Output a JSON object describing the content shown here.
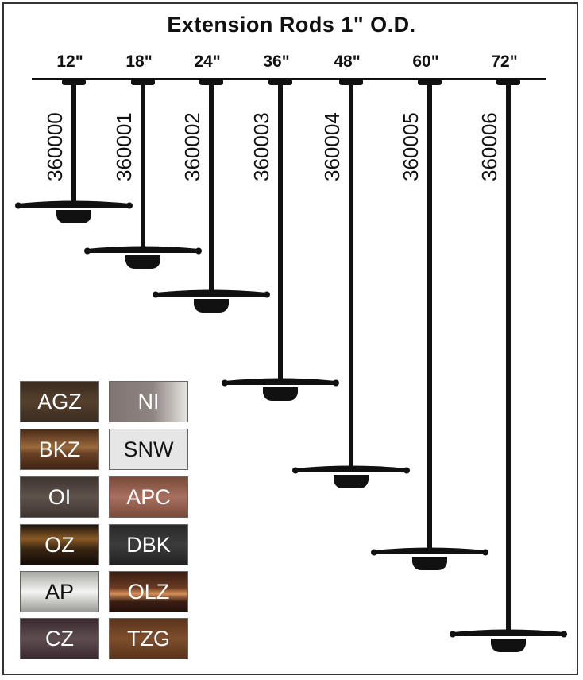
{
  "title": "Extension Rods 1\" O.D.",
  "rods": [
    {
      "length": "12\"",
      "part": "360000"
    },
    {
      "length": "18\"",
      "part": "360001"
    },
    {
      "length": "24\"",
      "part": "360002"
    },
    {
      "length": "36\"",
      "part": "360003"
    },
    {
      "length": "48\"",
      "part": "360004"
    },
    {
      "length": "60\"",
      "part": "360005"
    },
    {
      "length": "72\"",
      "part": "360006"
    }
  ],
  "finishes": [
    {
      "code": "AGZ",
      "bg": "linear-gradient(#3a2c20,#55402c,#3a2c20)",
      "text": "#ffffff"
    },
    {
      "code": "NI",
      "bg": "linear-gradient(90deg,#807472,#8e8482 55%,#e8e6e2)",
      "text": "#ffffff"
    },
    {
      "code": "BKZ",
      "bg": "linear-gradient(#4a2a18,#9a6a3c 45%,#6a4226 60%,#3e2414)",
      "text": "#ffffff"
    },
    {
      "code": "SNW",
      "bg": "#e6e6e6",
      "text": "#111111"
    },
    {
      "code": "OI",
      "bg": "linear-gradient(#3e3430,#5e524c 50%,#3e3430)",
      "text": "#ffffff"
    },
    {
      "code": "APC",
      "bg": "linear-gradient(#7a4a38,#a87060 50%,#7a4a38)",
      "text": "#ffffff"
    },
    {
      "code": "OZ",
      "bg": "linear-gradient(#1c140e,#8a5a26 35%,#3a2612 60%,#120c08)",
      "text": "#ffffff"
    },
    {
      "code": "DBK",
      "bg": "linear-gradient(#2a2a2a,#3c3c3c 50%,#222222)",
      "text": "#ffffff"
    },
    {
      "code": "AP",
      "bg": "linear-gradient(#a8a8a4,#f4f4f2 50%,#9a9a96)",
      "text": "#111111"
    },
    {
      "code": "OLZ",
      "bg": "linear-gradient(#3a1e14,#6a3a22 40%,#d89058 55%,#3a1e14 75%,#24100a)",
      "text": "#ffffff"
    },
    {
      "code": "CZ",
      "bg": "linear-gradient(#3a2a30,#5e4c50 50%,#3a2a30)",
      "text": "#ffffff"
    },
    {
      "code": "TZG",
      "bg": "linear-gradient(#5a341c,#7e4e2c 50%,#5a341c)",
      "text": "#ffffff"
    }
  ]
}
